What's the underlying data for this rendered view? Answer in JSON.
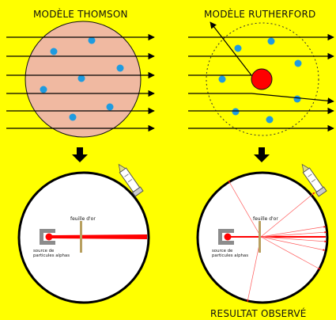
{
  "labels": {
    "thomson_title": "MODÈLE THOMSON",
    "rutherford_title": "MODÈLE RUTHERFORD",
    "gold_foil_left": "feuille d'or",
    "gold_foil_right": "feuille d'or",
    "source_left_line1": "source de",
    "source_left_line2": "particules alphas",
    "source_right_line1": "source de",
    "source_right_line2": "particules alphas",
    "result_observed": "RESULTAT OBSERVÉ"
  },
  "colors": {
    "background": "#ffff00",
    "thomson_atom_fill": "#f0b9a1",
    "electron": "#1e9be0",
    "nucleus": "#ff0000",
    "alpha_beam": "#ff0000",
    "gold_foil": "#b8a060",
    "arrows": "#000000"
  },
  "icons": {
    "down_arrow_left": "down-arrow-icon",
    "down_arrow_right": "down-arrow-icon",
    "detector_scope_left": "telescope-icon",
    "detector_scope_right": "telescope-icon"
  }
}
